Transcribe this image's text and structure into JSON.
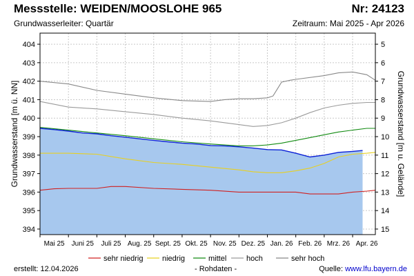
{
  "header": {
    "title": "Messstelle: WEIDEN/MOOSLOHE 965",
    "number": "Nr: 24123",
    "aquifer": "Grundwasserleiter: Quartär",
    "period": "Zeitraum: Mai 2025 - Apr 2026"
  },
  "footer": {
    "created_label": "erstellt:",
    "created_date": "12.04.2026",
    "raw_data": "- Rohdaten -",
    "source_label": "Quelle:",
    "source_url": "www.lfu.bayern.de"
  },
  "colors": {
    "fill": "#a7c8ee",
    "measured": "#0a1fd6",
    "sehr_niedrig": "#d02020",
    "niedrig": "#e8d020",
    "mittel": "#108a10",
    "hoch": "#9a9a9a",
    "sehr_hoch": "#888888",
    "grid": "#c8c8c8"
  },
  "chart_data": {
    "type": "line",
    "title": "",
    "ylabel": "Grundwasserstand [m ü. NN]",
    "y2label": "Grundwasserstand [m u. Gelände]",
    "ylim": [
      393.7,
      404.6
    ],
    "yticks": [
      394,
      395,
      396,
      397,
      398,
      399,
      400,
      401,
      402,
      403,
      404
    ],
    "y2lim": [
      15.3,
      4.4
    ],
    "y2ticks": [
      5,
      6,
      7,
      8,
      9,
      10,
      11,
      12,
      13,
      14,
      15
    ],
    "xlim": [
      0,
      11.8
    ],
    "xticks": [
      {
        "label": "Mai 25",
        "at": 0.5
      },
      {
        "label": "Juni 25",
        "at": 1.5
      },
      {
        "label": "Juli 25",
        "at": 2.5
      },
      {
        "label": "Aug. 25",
        "at": 3.5
      },
      {
        "label": "Sept. 25",
        "at": 4.5
      },
      {
        "label": "Okt. 25",
        "at": 5.5
      },
      {
        "label": "Nov. 25",
        "at": 6.5
      },
      {
        "label": "Dez. 25",
        "at": 7.5
      },
      {
        "label": "Jan. 26",
        "at": 8.5
      },
      {
        "label": "Feb. 26",
        "at": 9.5
      },
      {
        "label": "Mrz. 26",
        "at": 10.5
      },
      {
        "label": "Apr. 26",
        "at": 11.5
      }
    ],
    "legend": {
      "position": "bottom",
      "entries": [
        {
          "name": "sehr niedrig",
          "key": "sehr_niedrig"
        },
        {
          "name": "niedrig",
          "key": "niedrig"
        },
        {
          "name": "mittel",
          "key": "mittel"
        },
        {
          "name": "hoch",
          "key": "hoch"
        },
        {
          "name": "sehr hoch",
          "key": "sehr_hoch"
        }
      ]
    },
    "measured": {
      "name": "Rohdaten",
      "x": [
        0,
        0.5,
        1,
        1.5,
        2,
        2.5,
        3,
        3.5,
        4,
        4.5,
        5,
        5.5,
        6,
        6.5,
        7,
        7.5,
        8,
        8.5,
        9,
        9.5,
        10,
        10.5,
        11,
        11.35
      ],
      "y": [
        399.45,
        399.38,
        399.3,
        399.2,
        399.15,
        399.05,
        398.97,
        398.88,
        398.8,
        398.72,
        398.65,
        398.6,
        398.52,
        398.5,
        398.45,
        398.38,
        398.3,
        398.28,
        398.1,
        397.9,
        398.0,
        398.15,
        398.2,
        398.25
      ]
    },
    "series": [
      {
        "name": "sehr hoch",
        "key": "sehr_hoch",
        "x": [
          0,
          1,
          2,
          3,
          4,
          5,
          6,
          6.5,
          7,
          7.5,
          8,
          8.2,
          8.5,
          8.8,
          9,
          10,
          10.5,
          11,
          11.5,
          11.8
        ],
        "y": [
          402.0,
          401.85,
          401.5,
          401.3,
          401.1,
          400.95,
          400.9,
          401.0,
          401.05,
          401.05,
          401.1,
          401.2,
          401.95,
          402.05,
          402.1,
          402.3,
          402.45,
          402.5,
          402.35,
          402.05
        ]
      },
      {
        "name": "hoch",
        "key": "hoch",
        "x": [
          0,
          1,
          2,
          3,
          4,
          5,
          6,
          7,
          7.5,
          8,
          8.5,
          9,
          9.5,
          10,
          10.5,
          11,
          11.5,
          11.8
        ],
        "y": [
          400.9,
          400.6,
          400.5,
          400.35,
          400.2,
          400.0,
          399.85,
          399.65,
          399.55,
          399.6,
          399.75,
          400.0,
          400.3,
          400.55,
          400.7,
          400.8,
          400.85,
          400.85
        ]
      },
      {
        "name": "mittel",
        "key": "mittel",
        "x": [
          0,
          1,
          2,
          3,
          4,
          5,
          6,
          7,
          7.5,
          8,
          8.5,
          9,
          9.5,
          10,
          10.5,
          11,
          11.5,
          11.8
        ],
        "y": [
          399.5,
          399.35,
          399.2,
          399.05,
          398.88,
          398.72,
          398.6,
          398.5,
          398.5,
          398.55,
          398.65,
          398.8,
          398.95,
          399.1,
          399.25,
          399.35,
          399.45,
          399.45
        ]
      },
      {
        "name": "niedrig",
        "key": "niedrig",
        "x": [
          0,
          1,
          2,
          3,
          4,
          5,
          6,
          7,
          7.5,
          8,
          8.5,
          9,
          9.5,
          10,
          10.5,
          11,
          11.5,
          11.8
        ],
        "y": [
          398.1,
          398.1,
          398.05,
          397.8,
          397.6,
          397.5,
          397.35,
          397.2,
          397.1,
          397.05,
          397.05,
          397.15,
          397.3,
          397.55,
          397.9,
          398.05,
          398.1,
          398.15
        ]
      },
      {
        "name": "sehr niedrig",
        "key": "sehr_niedrig",
        "x": [
          0,
          0.5,
          1,
          2,
          2.5,
          3,
          4,
          5,
          6,
          7,
          8,
          9,
          9.5,
          10,
          10.5,
          11,
          11.5,
          11.8
        ],
        "y": [
          396.1,
          396.18,
          396.2,
          396.2,
          396.3,
          396.3,
          396.2,
          396.15,
          396.1,
          396.0,
          396.0,
          396.0,
          395.9,
          395.9,
          395.9,
          396.0,
          396.05,
          396.1
        ]
      }
    ]
  }
}
